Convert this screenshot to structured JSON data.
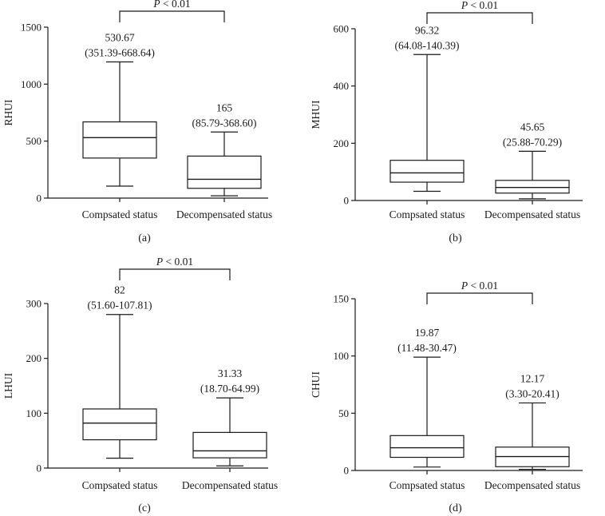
{
  "chart_data": [
    {
      "type": "box",
      "panel_label": "(a)",
      "ylabel": "RHUI",
      "ylim": [
        0,
        1500
      ],
      "yticks": [
        0,
        500,
        1000,
        1500
      ],
      "significance": {
        "prefix": "P",
        "text": " < 0.01"
      },
      "categories": [
        "Compsated status",
        "Decompensated status"
      ],
      "boxes": [
        {
          "name": "Compsated status",
          "min": 105,
          "q1": 351.39,
          "median": 530.67,
          "q3": 668.64,
          "max": 1195,
          "median_label": "530.67",
          "iqr_label": "(351.39-668.64)"
        },
        {
          "name": "Decompensated status",
          "min": 20,
          "q1": 85.79,
          "median": 165,
          "q3": 368.6,
          "max": 580,
          "median_label": "165",
          "iqr_label": "(85.79-368.60)"
        }
      ]
    },
    {
      "type": "box",
      "panel_label": "(b)",
      "ylabel": "MHUI",
      "ylim": [
        0,
        600
      ],
      "yticks": [
        0,
        200,
        400,
        600
      ],
      "significance": {
        "prefix": "P",
        "text": " < 0.01"
      },
      "categories": [
        "Compsated status",
        "Decompensated status"
      ],
      "boxes": [
        {
          "name": "Compsated status",
          "min": 32,
          "q1": 64.08,
          "median": 96.32,
          "q3": 140.39,
          "max": 510,
          "median_label": "96.32",
          "iqr_label": "(64.08-140.39)"
        },
        {
          "name": "Decompensated status",
          "min": 6,
          "q1": 25.88,
          "median": 45.65,
          "q3": 70.29,
          "max": 172,
          "median_label": "45.65",
          "iqr_label": "(25.88-70.29)"
        }
      ]
    },
    {
      "type": "box",
      "panel_label": "(c)",
      "ylabel": "LHUI",
      "ylim": [
        0,
        300
      ],
      "yticks": [
        0,
        100,
        200,
        300
      ],
      "significance": {
        "prefix": "P",
        "text": " < 0.01"
      },
      "categories": [
        "Compsated status",
        "Decompensated status"
      ],
      "boxes": [
        {
          "name": "Compsated status",
          "min": 18,
          "q1": 51.6,
          "median": 82,
          "q3": 107.81,
          "max": 280,
          "median_label": "82",
          "iqr_label": "(51.60-107.81)"
        },
        {
          "name": "Decompensated status",
          "min": 4,
          "q1": 18.7,
          "median": 31.33,
          "q3": 64.99,
          "max": 128,
          "median_label": "31.33",
          "iqr_label": "(18.70-64.99)"
        }
      ]
    },
    {
      "type": "box",
      "panel_label": "(d)",
      "ylabel": "CHUI",
      "ylim": [
        0,
        150
      ],
      "yticks": [
        0,
        50,
        100,
        150
      ],
      "significance": {
        "prefix": "P",
        "text": " < 0.01"
      },
      "categories": [
        "Compsated status",
        "Decompensated status"
      ],
      "boxes": [
        {
          "name": "Compsated status",
          "min": 3,
          "q1": 11.48,
          "median": 19.87,
          "q3": 30.47,
          "max": 99,
          "median_label": "19.87",
          "iqr_label": "(11.48-30.47)"
        },
        {
          "name": "Decompensated status",
          "min": 1,
          "q1": 3.3,
          "median": 12.17,
          "q3": 20.41,
          "max": 59,
          "median_label": "12.17",
          "iqr_label": "(3.30-20.41)"
        }
      ]
    }
  ]
}
